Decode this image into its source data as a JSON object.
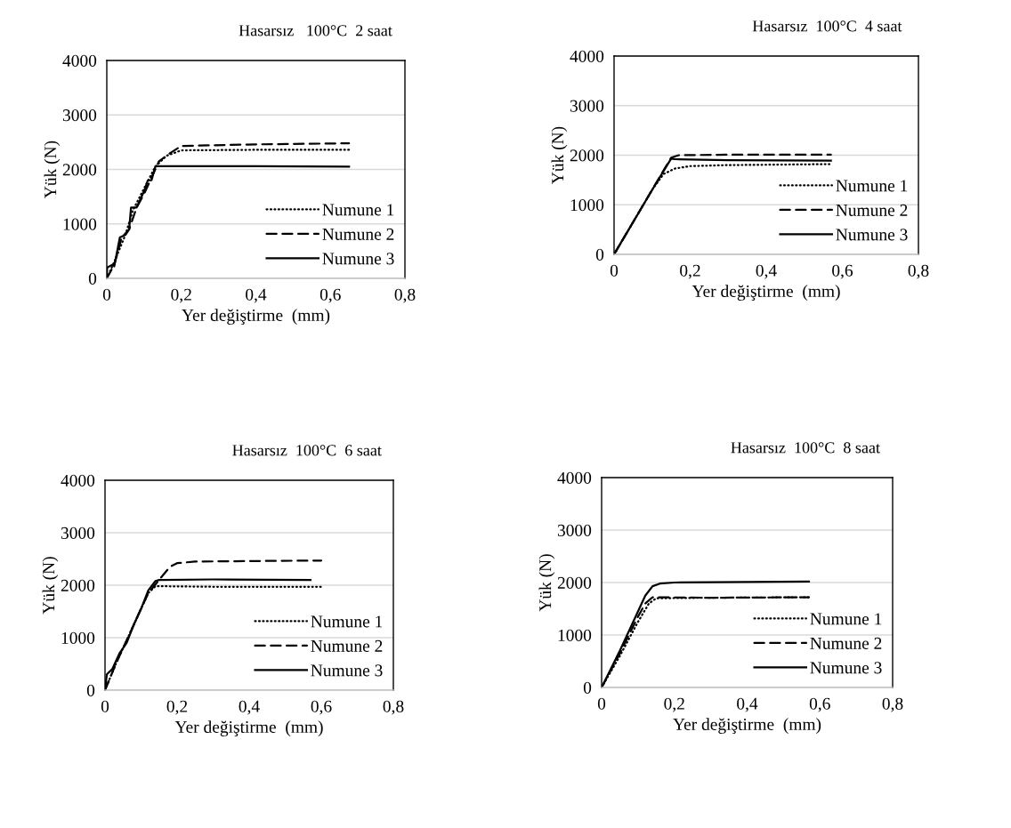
{
  "chart_data": [
    {
      "type": "line",
      "title": "Hasarsız   100°C  2 saat",
      "xlabel": "Yer değiştirme  (mm)",
      "ylabel": "Yük (N)",
      "xlim": [
        0,
        0.8
      ],
      "xticks": [
        0,
        {
          "value": 0.2,
          "label": "0,2"
        },
        {
          "value": 0.4,
          "label": "0,4"
        },
        {
          "value": 0.6,
          "label": "0,6"
        },
        {
          "value": 0.8,
          "label": "0,8"
        }
      ],
      "ylim": [
        0,
        4000
      ],
      "yticks": [
        0,
        1000,
        2000,
        3000,
        4000
      ],
      "grid": "y",
      "legend": "bottom right",
      "marker": "none",
      "series": [
        {
          "name": "Numune 1",
          "color": "#000000",
          "line_style": "dotted",
          "x": [
            0,
            0.02,
            0.05,
            0.07,
            0.1,
            0.13,
            0.16,
            0.2,
            0.4,
            0.65
          ],
          "values": [
            0,
            300,
            800,
            1250,
            1650,
            2050,
            2250,
            2350,
            2360,
            2360
          ]
        },
        {
          "name": "Numune 2",
          "color": "#000000",
          "line_style": "dashed",
          "x": [
            0,
            0.02,
            0.04,
            0.06,
            0.08,
            0.1,
            0.12,
            0.14,
            0.17,
            0.2,
            0.4,
            0.65
          ],
          "values": [
            0,
            250,
            750,
            900,
            1300,
            1550,
            1850,
            2150,
            2300,
            2430,
            2460,
            2480
          ]
        },
        {
          "name": "Numune 3",
          "color": "#000000",
          "line_style": "solid",
          "x": [
            0,
            0.001,
            0.015,
            0.02,
            0.035,
            0.05,
            0.06,
            0.065,
            0.08,
            0.1,
            0.11,
            0.12,
            0.13,
            0.135,
            0.4,
            0.65
          ],
          "values": [
            0,
            200,
            250,
            220,
            750,
            800,
            900,
            1300,
            1300,
            1600,
            1800,
            1800,
            2050,
            2060,
            2060,
            2050
          ]
        }
      ]
    },
    {
      "type": "line",
      "title": "Hasarsız  100°C  4 saat",
      "xlabel": "Yer değiştirme  (mm)",
      "ylabel": "Yük (N)",
      "xlim": [
        0,
        0.8
      ],
      "xticks": [
        0,
        {
          "value": 0.2,
          "label": "0,2"
        },
        {
          "value": 0.4,
          "label": "0,4"
        },
        {
          "value": 0.6,
          "label": "0,6"
        },
        {
          "value": 0.8,
          "label": "0,8"
        }
      ],
      "ylim": [
        0,
        4000
      ],
      "yticks": [
        0,
        1000,
        2000,
        3000,
        4000
      ],
      "grid": "y",
      "legend": "bottom right",
      "marker": "none",
      "series": [
        {
          "name": "Numune 1",
          "color": "#000000",
          "line_style": "dotted",
          "x": [
            0,
            0.05,
            0.1,
            0.13,
            0.16,
            0.2,
            0.3,
            0.57
          ],
          "values": [
            0,
            650,
            1300,
            1620,
            1730,
            1780,
            1800,
            1820
          ]
        },
        {
          "name": "Numune 2",
          "color": "#000000",
          "line_style": "dashed",
          "x": [
            0,
            0.05,
            0.1,
            0.15,
            0.17,
            0.3,
            0.57
          ],
          "values": [
            0,
            650,
            1300,
            1950,
            2000,
            2010,
            2010
          ]
        },
        {
          "name": "Numune 3",
          "color": "#000000",
          "line_style": "solid",
          "x": [
            0,
            0.05,
            0.1,
            0.15,
            0.16,
            0.3,
            0.57
          ],
          "values": [
            0,
            650,
            1300,
            1930,
            1920,
            1900,
            1890
          ]
        }
      ]
    },
    {
      "type": "line",
      "title": "Hasarsız  100°C  6 saat",
      "xlabel": "Yer değiştirme  (mm)",
      "ylabel": "Yük (N)",
      "xlim": [
        0,
        0.8
      ],
      "xticks": [
        0,
        {
          "value": 0.2,
          "label": "0,2"
        },
        {
          "value": 0.4,
          "label": "0,4"
        },
        {
          "value": 0.6,
          "label": "0,6"
        },
        {
          "value": 0.8,
          "label": "0,8"
        }
      ],
      "ylim": [
        0,
        4000
      ],
      "yticks": [
        0,
        1000,
        2000,
        3000,
        4000
      ],
      "grid": "y",
      "legend": "bottom right",
      "marker": "none",
      "series": [
        {
          "name": "Numune 1",
          "color": "#000000",
          "line_style": "dotted",
          "x": [
            0,
            0.03,
            0.06,
            0.09,
            0.12,
            0.14,
            0.16,
            0.3,
            0.6
          ],
          "values": [
            0,
            500,
            950,
            1400,
            1850,
            1980,
            1980,
            1970,
            1970
          ]
        },
        {
          "name": "Numune 2",
          "color": "#000000",
          "line_style": "dashed",
          "x": [
            0,
            0.03,
            0.06,
            0.09,
            0.12,
            0.15,
            0.18,
            0.2,
            0.25,
            0.4,
            0.6
          ],
          "values": [
            0,
            500,
            950,
            1400,
            1850,
            2100,
            2350,
            2420,
            2450,
            2460,
            2470
          ]
        },
        {
          "name": "Numune 3",
          "color": "#000000",
          "line_style": "solid",
          "x": [
            0,
            0.005,
            0.02,
            0.04,
            0.06,
            0.08,
            0.1,
            0.12,
            0.14,
            0.15,
            0.3,
            0.57
          ],
          "values": [
            0,
            300,
            400,
            700,
            900,
            1250,
            1550,
            1900,
            2080,
            2100,
            2110,
            2100
          ]
        }
      ]
    },
    {
      "type": "line",
      "title": "Hasarsız  100°C  8 saat",
      "xlabel": "Yer değiştirme  (mm)",
      "ylabel": "Yük (N)",
      "xlim": [
        0,
        0.8
      ],
      "xticks": [
        0,
        {
          "value": 0.2,
          "label": "0,2"
        },
        {
          "value": 0.4,
          "label": "0,4"
        },
        {
          "value": 0.6,
          "label": "0,6"
        },
        {
          "value": 0.8,
          "label": "0,8"
        }
      ],
      "ylim": [
        0,
        4000
      ],
      "yticks": [
        0,
        1000,
        2000,
        3000,
        4000
      ],
      "grid": "y",
      "legend": "bottom right",
      "marker": "none",
      "series": [
        {
          "name": "Numune 1",
          "color": "#000000",
          "line_style": "dotted",
          "x": [
            0,
            0.05,
            0.1,
            0.13,
            0.15,
            0.3,
            0.57
          ],
          "values": [
            0,
            600,
            1250,
            1600,
            1700,
            1710,
            1720
          ]
        },
        {
          "name": "Numune 2",
          "color": "#000000",
          "line_style": "dashed",
          "x": [
            0,
            0.05,
            0.1,
            0.12,
            0.14,
            0.3,
            0.57
          ],
          "values": [
            0,
            650,
            1350,
            1600,
            1720,
            1710,
            1720
          ]
        },
        {
          "name": "Numune 3",
          "color": "#000000",
          "line_style": "solid",
          "x": [
            0,
            0.05,
            0.1,
            0.12,
            0.14,
            0.16,
            0.2,
            0.4,
            0.57
          ],
          "values": [
            0,
            700,
            1450,
            1750,
            1930,
            1980,
            2000,
            2010,
            2020
          ]
        }
      ]
    }
  ]
}
